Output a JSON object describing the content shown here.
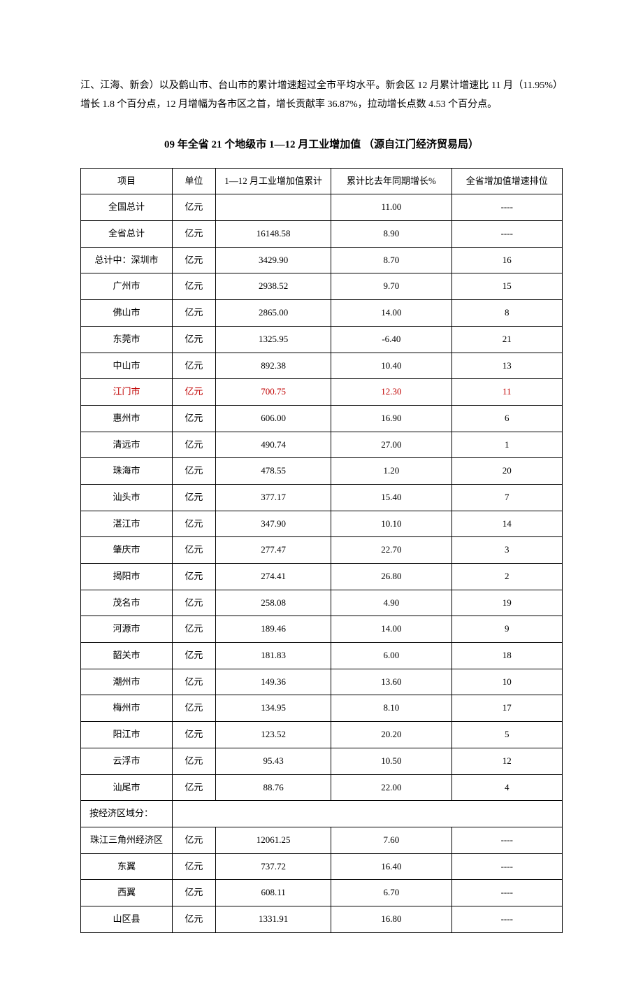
{
  "paragraph": "江、江海、新会）以及鹤山市、台山市的累计增速超过全市平均水平。新会区 12 月累计增速比 11 月（11.95%）增长 1.8 个百分点，12 月增幅为各市区之首，增长贡献率 36.87%，拉动增长点数 4.53 个百分点。",
  "table_title": "09 年全省 21 个地级市 1—12 月工业增加值 （源自江门经济贸易局）",
  "columns": [
    "项目",
    "单位",
    "1—12 月工业增加值累计",
    "累计比去年同期增长%",
    "全省增加值增速排位"
  ],
  "column_widths": [
    "19%",
    "9%",
    "24%",
    "25%",
    "23%"
  ],
  "highlight_row_index": 7,
  "highlight_color": "#c00000",
  "section_divider_row_index": 24,
  "rows": [
    {
      "c0": "全国总计",
      "c1": "亿元",
      "c2": "",
      "c3": "11.00",
      "c4": "----"
    },
    {
      "c0": "全省总计",
      "c1": "亿元",
      "c2": "16148.58",
      "c3": "8.90",
      "c4": "----"
    },
    {
      "c0": "总计中：深圳市",
      "c1": "亿元",
      "c2": "3429.90",
      "c3": "8.70",
      "c4": "16"
    },
    {
      "c0": "广州市",
      "c1": "亿元",
      "c2": "2938.52",
      "c3": "9.70",
      "c4": "15"
    },
    {
      "c0": "佛山市",
      "c1": "亿元",
      "c2": "2865.00",
      "c3": "14.00",
      "c4": "8"
    },
    {
      "c0": "东莞市",
      "c1": "亿元",
      "c2": "1325.95",
      "c3": "-6.40",
      "c4": "21"
    },
    {
      "c0": "中山市",
      "c1": "亿元",
      "c2": "892.38",
      "c3": "10.40",
      "c4": "13"
    },
    {
      "c0": "江门市",
      "c1": "亿元",
      "c2": "700.75",
      "c3": "12.30",
      "c4": "11"
    },
    {
      "c0": "惠州市",
      "c1": "亿元",
      "c2": "606.00",
      "c3": "16.90",
      "c4": "6"
    },
    {
      "c0": "清远市",
      "c1": "亿元",
      "c2": "490.74",
      "c3": "27.00",
      "c4": "1"
    },
    {
      "c0": "珠海市",
      "c1": "亿元",
      "c2": "478.55",
      "c3": "1.20",
      "c4": "20"
    },
    {
      "c0": "汕头市",
      "c1": "亿元",
      "c2": "377.17",
      "c3": "15.40",
      "c4": "7"
    },
    {
      "c0": "湛江市",
      "c1": "亿元",
      "c2": "347.90",
      "c3": "10.10",
      "c4": "14"
    },
    {
      "c0": "肇庆市",
      "c1": "亿元",
      "c2": "277.47",
      "c3": "22.70",
      "c4": "3"
    },
    {
      "c0": "揭阳市",
      "c1": "亿元",
      "c2": "274.41",
      "c3": "26.80",
      "c4": "2"
    },
    {
      "c0": "茂名市",
      "c1": "亿元",
      "c2": "258.08",
      "c3": "4.90",
      "c4": "19"
    },
    {
      "c0": "河源市",
      "c1": "亿元",
      "c2": "189.46",
      "c3": "14.00",
      "c4": "9"
    },
    {
      "c0": "韶关市",
      "c1": "亿元",
      "c2": "181.83",
      "c3": "6.00",
      "c4": "18"
    },
    {
      "c0": "潮州市",
      "c1": "亿元",
      "c2": "149.36",
      "c3": "13.60",
      "c4": "10"
    },
    {
      "c0": "梅州市",
      "c1": "亿元",
      "c2": "134.95",
      "c3": "8.10",
      "c4": "17"
    },
    {
      "c0": "阳江市",
      "c1": "亿元",
      "c2": "123.52",
      "c3": "20.20",
      "c4": "5"
    },
    {
      "c0": "云浮市",
      "c1": "亿元",
      "c2": "95.43",
      "c3": "10.50",
      "c4": "12"
    },
    {
      "c0": "汕尾市",
      "c1": "亿元",
      "c2": "88.76",
      "c3": "22.00",
      "c4": "4"
    },
    {
      "c0": "按经济区域分：",
      "c1": "",
      "c2": "",
      "c3": "",
      "c4": ""
    },
    {
      "c0": "珠江三角州经济区",
      "c1": "亿元",
      "c2": "12061.25",
      "c3": "7.60",
      "c4": "----"
    },
    {
      "c0": "东翼",
      "c1": "亿元",
      "c2": "737.72",
      "c3": "16.40",
      "c4": "----"
    },
    {
      "c0": "西翼",
      "c1": "亿元",
      "c2": "608.11",
      "c3": "6.70",
      "c4": "----"
    },
    {
      "c0": "山区县",
      "c1": "亿元",
      "c2": "1331.91",
      "c3": "16.80",
      "c4": "----"
    }
  ]
}
